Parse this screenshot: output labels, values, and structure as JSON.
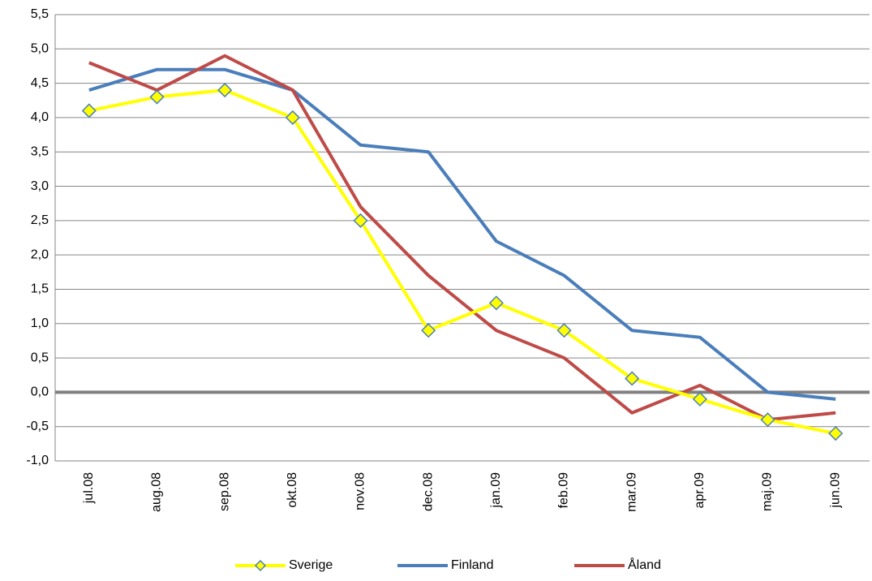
{
  "chart_data": {
    "type": "line",
    "categories": [
      "jul.08",
      "aug.08",
      "sep.08",
      "okt.08",
      "nov.08",
      "dec.08",
      "jan.09",
      "feb.09",
      "mar.09",
      "apr.09",
      "maj.09",
      "jun.09"
    ],
    "series": [
      {
        "name": "Sverige",
        "color": "#ffff00",
        "marker": "diamond",
        "values": [
          4.1,
          4.3,
          4.4,
          4.0,
          2.5,
          0.9,
          1.3,
          0.9,
          0.2,
          -0.1,
          -0.4,
          -0.6
        ]
      },
      {
        "name": "Finland",
        "color": "#4a7ebb",
        "values": [
          4.4,
          4.7,
          4.7,
          4.4,
          3.6,
          3.5,
          2.2,
          1.7,
          0.9,
          0.8,
          0.0,
          -0.1
        ]
      },
      {
        "name": "Åland",
        "color": "#be4b48",
        "values": [
          4.8,
          4.4,
          4.9,
          4.4,
          2.7,
          1.7,
          0.9,
          0.5,
          -0.3,
          0.1,
          -0.4,
          -0.3
        ]
      }
    ],
    "ylim": [
      -1.0,
      5.5
    ],
    "yticks": [
      {
        "value": -1.0,
        "label": "-1,0"
      },
      {
        "value": -0.5,
        "label": "-0,5"
      },
      {
        "value": 0.0,
        "label": "0,0"
      },
      {
        "value": 0.5,
        "label": "0,5"
      },
      {
        "value": 1.0,
        "label": "1,0"
      },
      {
        "value": 1.5,
        "label": "1,5"
      },
      {
        "value": 2.0,
        "label": "2,0"
      },
      {
        "value": 2.5,
        "label": "2,5"
      },
      {
        "value": 3.0,
        "label": "3,0"
      },
      {
        "value": 3.5,
        "label": "3,5"
      },
      {
        "value": 4.0,
        "label": "4,0"
      },
      {
        "value": 4.5,
        "label": "4,5"
      },
      {
        "value": 5.0,
        "label": "5,0"
      },
      {
        "value": 5.5,
        "label": "5,5"
      }
    ],
    "grid": true
  }
}
